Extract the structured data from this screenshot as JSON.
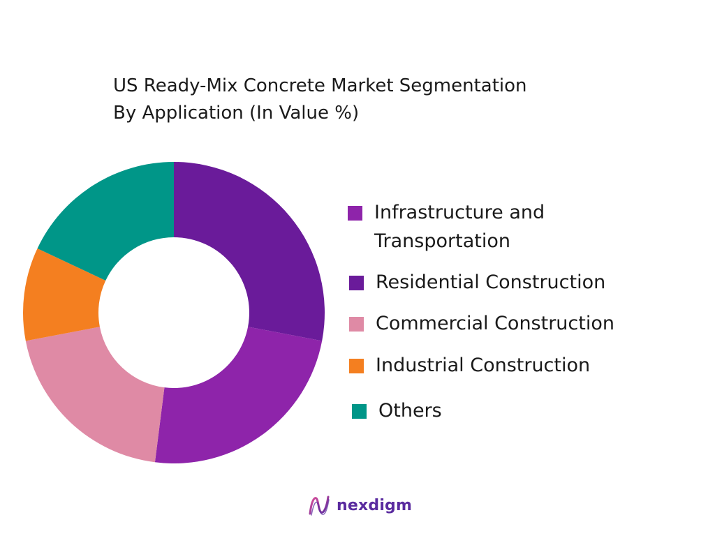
{
  "chart_data": {
    "type": "pie",
    "title_lines": [
      "US Ready-Mix Concrete Market  Segmentation",
      "By Application (In Value %)"
    ],
    "categories": [
      "Residential Construction",
      "Infrastructure and Transportation",
      "Commercial Construction",
      "Industrial Construction",
      "Others"
    ],
    "values": [
      28,
      24,
      20,
      10,
      18
    ],
    "colors": [
      "#6a1b9a",
      "#8e24aa",
      "#df8aa5",
      "#f47f20",
      "#009688"
    ],
    "hole": true
  },
  "legend": [
    {
      "label": "Infrastructure and\nTransportation",
      "color": "#8e24aa"
    },
    {
      "label": "Residential Construction",
      "color": "#6a1b9a"
    },
    {
      "label": "Commercial Construction",
      "color": "#df8aa5"
    },
    {
      "label": "Industrial Construction",
      "color": "#f47f20"
    },
    {
      "label": "Others",
      "color": "#009688"
    }
  ],
  "logo": {
    "text": "nexdigm",
    "color": "#5a2b9f"
  }
}
